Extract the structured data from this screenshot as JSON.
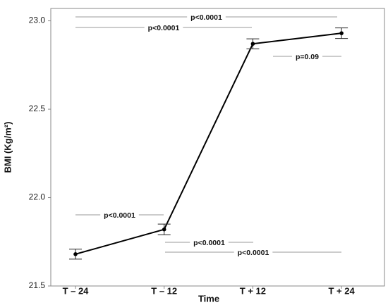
{
  "chart_data": {
    "type": "line",
    "x_label": "Time",
    "y_label": "BMI (Kg/m²)",
    "categories": [
      "T – 24",
      "T – 12",
      "T + 12",
      "T + 24"
    ],
    "series": [
      {
        "color": "#000000",
        "values": [
          21.68,
          21.82,
          22.87,
          22.93
        ],
        "errors": [
          0.028,
          0.03,
          0.028,
          0.03
        ]
      }
    ],
    "ylim": [
      21.5,
      23.07
    ],
    "yticks": [
      {
        "value": 21.5,
        "label": "21.5"
      },
      {
        "value": 22.0,
        "label": "22.0"
      },
      {
        "value": 22.5,
        "label": "22.5"
      },
      {
        "value": 23.0,
        "label": "23.0"
      }
    ],
    "annotations": [
      "p<0.0001",
      "p<0.0001",
      "p=0.09",
      "p<0.0001",
      "p<0.0001",
      "p<0.0001"
    ]
  }
}
